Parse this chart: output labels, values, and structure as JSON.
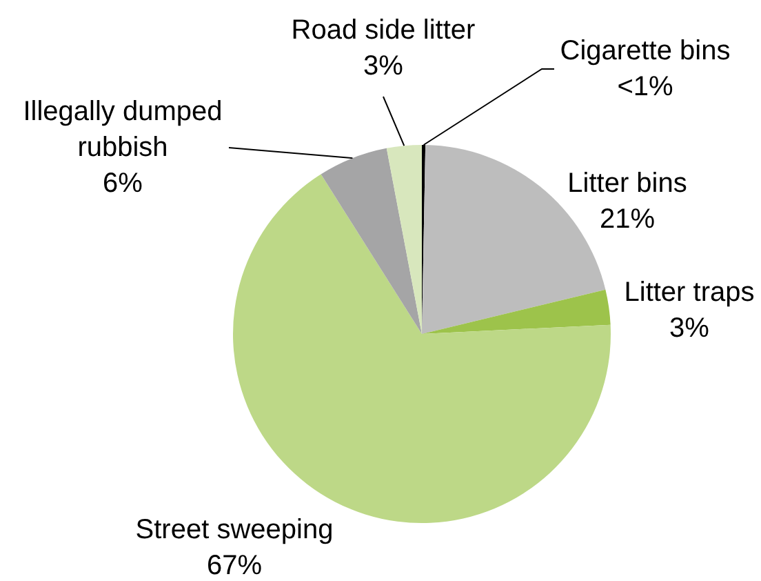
{
  "chart_data": {
    "type": "pie",
    "categories": [
      "Cigarette bins",
      "Litter bins",
      "Litter traps",
      "Street sweeping",
      "Illegally dumped rubbish",
      "Road side litter"
    ],
    "values": [
      0.3,
      21,
      3,
      67,
      6,
      3
    ],
    "colors": [
      "#000000",
      "#bdbdbd",
      "#9dc34b",
      "#bdd887",
      "#a5a5a6",
      "#d8e7bd"
    ],
    "value_labels": [
      "<1%",
      "21%",
      "3%",
      "67%",
      "6%",
      "3%"
    ]
  }
}
